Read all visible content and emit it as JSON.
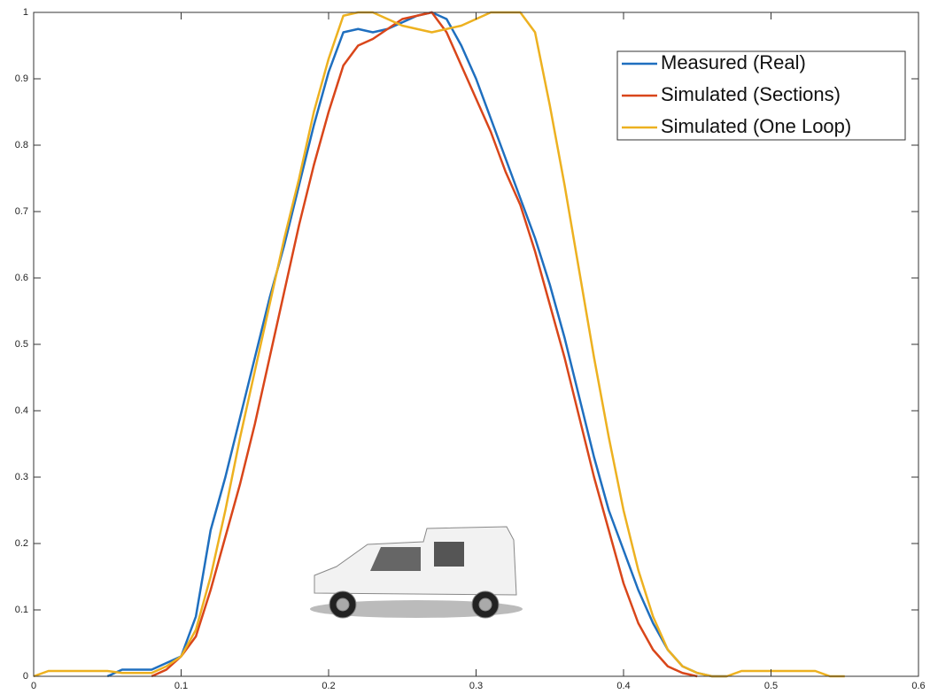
{
  "chart_data": {
    "type": "line",
    "xlim": [
      0,
      0.6
    ],
    "xticks": [
      0,
      0.1,
      0.2,
      0.3,
      0.4,
      0.5,
      0.6
    ],
    "ylim": [
      0,
      1
    ],
    "yticks": [
      0,
      0.1,
      0.2,
      0.3,
      0.4,
      0.5,
      0.6,
      0.7,
      0.8,
      0.9,
      1
    ],
    "legend": "upper right",
    "series": [
      {
        "name": "Measured (Real)",
        "color": "#1f6fbf",
        "x": [
          0.05,
          0.06,
          0.07,
          0.08,
          0.09,
          0.1,
          0.11,
          0.12,
          0.13,
          0.14,
          0.15,
          0.16,
          0.17,
          0.18,
          0.19,
          0.2,
          0.21,
          0.22,
          0.23,
          0.24,
          0.25,
          0.26,
          0.27,
          0.28,
          0.29,
          0.3,
          0.31,
          0.32,
          0.33,
          0.34,
          0.35,
          0.36,
          0.37,
          0.38,
          0.39,
          0.4,
          0.41,
          0.42,
          0.43,
          0.44,
          0.45,
          0.46,
          0.47
        ],
        "values": [
          0,
          0.01,
          0.01,
          0.01,
          0.02,
          0.03,
          0.09,
          0.22,
          0.3,
          0.39,
          0.48,
          0.57,
          0.65,
          0.74,
          0.83,
          0.91,
          0.97,
          0.975,
          0.97,
          0.975,
          0.985,
          0.995,
          1,
          0.99,
          0.95,
          0.9,
          0.84,
          0.78,
          0.72,
          0.66,
          0.59,
          0.51,
          0.42,
          0.33,
          0.25,
          0.19,
          0.13,
          0.08,
          0.04,
          0.015,
          0.005,
          0,
          0
        ]
      },
      {
        "name": "Simulated (Sections)",
        "color": "#d9461a",
        "x": [
          0.08,
          0.09,
          0.1,
          0.11,
          0.12,
          0.13,
          0.14,
          0.15,
          0.16,
          0.17,
          0.18,
          0.19,
          0.2,
          0.21,
          0.22,
          0.23,
          0.24,
          0.25,
          0.26,
          0.27,
          0.28,
          0.29,
          0.3,
          0.31,
          0.32,
          0.33,
          0.34,
          0.35,
          0.36,
          0.37,
          0.38,
          0.39,
          0.4,
          0.41,
          0.42,
          0.43,
          0.44,
          0.45
        ],
        "values": [
          0,
          0.01,
          0.03,
          0.06,
          0.13,
          0.21,
          0.29,
          0.38,
          0.48,
          0.58,
          0.68,
          0.77,
          0.85,
          0.92,
          0.95,
          0.96,
          0.975,
          0.99,
          0.995,
          1,
          0.97,
          0.92,
          0.87,
          0.82,
          0.76,
          0.71,
          0.64,
          0.56,
          0.48,
          0.39,
          0.3,
          0.22,
          0.14,
          0.08,
          0.04,
          0.015,
          0.005,
          0
        ]
      },
      {
        "name": "Simulated (One Loop)",
        "color": "#edb120",
        "x": [
          0,
          0.01,
          0.02,
          0.03,
          0.04,
          0.05,
          0.06,
          0.07,
          0.08,
          0.09,
          0.1,
          0.11,
          0.12,
          0.13,
          0.14,
          0.15,
          0.16,
          0.17,
          0.18,
          0.19,
          0.2,
          0.21,
          0.22,
          0.23,
          0.24,
          0.25,
          0.26,
          0.27,
          0.28,
          0.29,
          0.3,
          0.31,
          0.32,
          0.33,
          0.34,
          0.35,
          0.36,
          0.37,
          0.38,
          0.39,
          0.4,
          0.41,
          0.42,
          0.43,
          0.44,
          0.45,
          0.46,
          0.47,
          0.48,
          0.49,
          0.5,
          0.51,
          0.52,
          0.53,
          0.54,
          0.55
        ],
        "values": [
          0,
          0.008,
          0.008,
          0.008,
          0.008,
          0.008,
          0.005,
          0.005,
          0.005,
          0.015,
          0.03,
          0.07,
          0.15,
          0.25,
          0.36,
          0.46,
          0.56,
          0.66,
          0.75,
          0.85,
          0.93,
          0.995,
          1,
          1,
          0.99,
          0.98,
          0.975,
          0.97,
          0.975,
          0.98,
          0.99,
          1,
          1,
          1,
          0.97,
          0.86,
          0.74,
          0.61,
          0.48,
          0.36,
          0.25,
          0.16,
          0.09,
          0.04,
          0.015,
          0.005,
          0,
          0,
          0.008,
          0.008,
          0.008,
          0.008,
          0.008,
          0.008,
          0,
          0
        ]
      }
    ]
  }
}
